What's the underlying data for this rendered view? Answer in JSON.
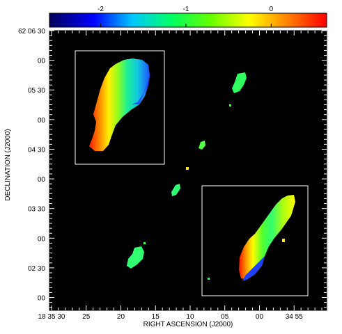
{
  "chart_data": {
    "type": "heatmap",
    "title": "",
    "colorbar": {
      "ticks": [
        "-2",
        "-1",
        "0"
      ],
      "tick_values": [
        -2,
        -1,
        0
      ],
      "range": [
        -2.6,
        0.65
      ],
      "colormap": [
        "#00005a",
        "#0000ff",
        "#00c8ff",
        "#00ff64",
        "#64ff00",
        "#ffff00",
        "#ff8000",
        "#ff0000"
      ]
    },
    "xlabel": "RIGHT ASCENSION (J2000)",
    "ylabel": "DECLINATION (J2000)",
    "x_tick_labels": [
      "18 35 30",
      "25",
      "20",
      "15",
      "10",
      "05",
      "00",
      "34 55"
    ],
    "x_tick_values_sec": [
      30,
      25,
      20,
      15,
      10,
      5,
      0,
      -5
    ],
    "x_range_sec": [
      30.3,
      -9.7
    ],
    "y_tick_labels": [
      "62 06 30",
      "00",
      "05 30",
      "00",
      "04 30",
      "00",
      "03 30",
      "00",
      "02 30",
      "00"
    ],
    "y_tick_values_arcsec": [
      390,
      360,
      330,
      300,
      270,
      240,
      210,
      180,
      150,
      120
    ],
    "y_range_arcsec": [
      107,
      390
    ],
    "background": "#000000",
    "foreground_box_color": "#ffffff",
    "features": [
      {
        "name": "north-lobe-inset",
        "kind": "inset"
      },
      {
        "name": "south-lobe-inset",
        "kind": "inset"
      },
      {
        "name": "jet-blobs",
        "kind": "emission"
      }
    ]
  }
}
